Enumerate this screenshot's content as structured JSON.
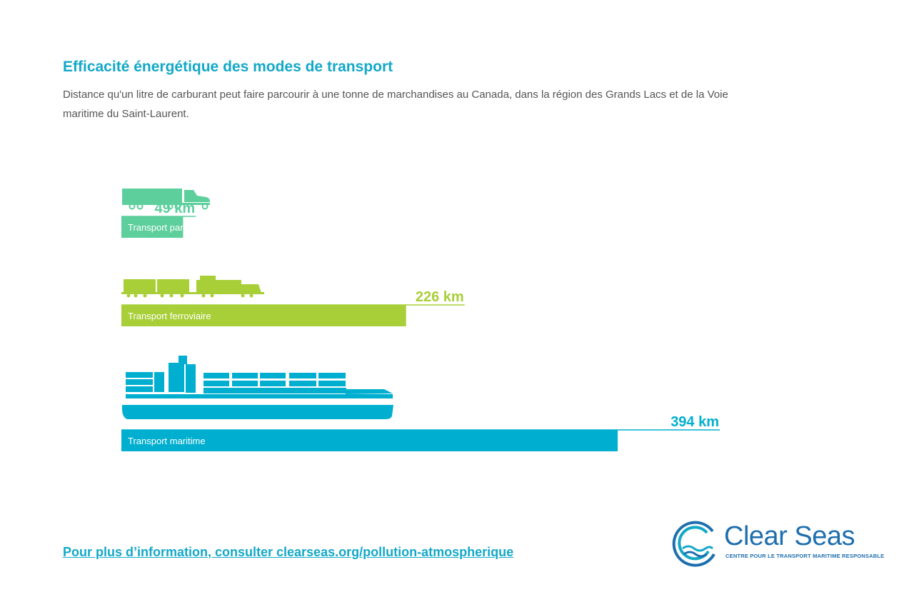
{
  "header": {
    "title": "Efficacité énergétique des modes de transport",
    "subtitle": "Distance qu'un litre de carburant peut faire parcourir à une tonne de marchandises au Canada, dans la région des Grands Lacs et de la Voie maritime du Saint-Laurent."
  },
  "chart_data": {
    "type": "bar",
    "orientation": "horizontal",
    "title": "Efficacité énergétique des modes de transport",
    "unit": "km",
    "categories": [
      "Transport par camion",
      "Transport ferroviaire",
      "Transport maritime"
    ],
    "values": [
      49,
      226,
      394
    ],
    "value_labels": [
      "49 km",
      "226 km",
      "394 km"
    ],
    "colors": [
      "#5ccf9c",
      "#a9cf38",
      "#00afd0"
    ],
    "icons": [
      "truck-icon",
      "train-icon",
      "ship-icon"
    ],
    "grid": false,
    "legend": "none"
  },
  "footer": {
    "link_text": "Pour plus d’information, consulter clearseas.org/pollution-atmospherique"
  },
  "logo": {
    "name": "Clear Seas",
    "tagline": "CENTRE POUR LE TRANSPORT MARITIME RESPONSABLE",
    "color": "#1e6fae",
    "accent": "#13a8c8"
  }
}
